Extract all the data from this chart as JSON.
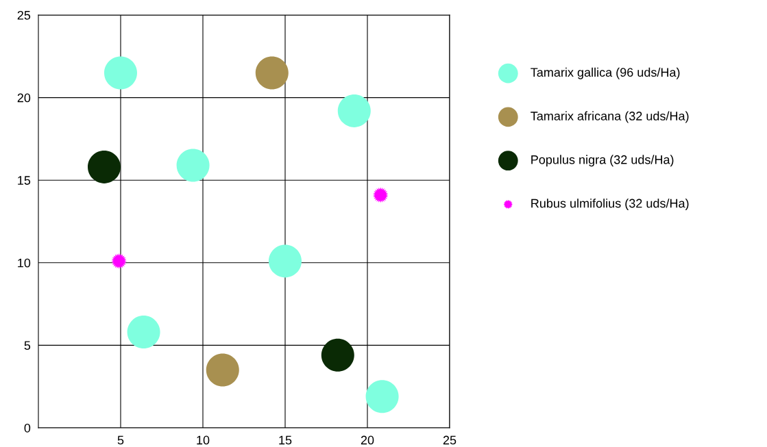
{
  "chart_data": {
    "type": "bubble",
    "xlim": [
      0,
      25
    ],
    "ylim": [
      0,
      25
    ],
    "xticks": [
      5,
      10,
      15,
      20,
      25
    ],
    "yticks": [
      0,
      5,
      10,
      15,
      20,
      25
    ],
    "grid": true,
    "legend": "right",
    "series": [
      {
        "name": "Tamarix gallica (96 uds/Ha)",
        "color": "#7fffdf",
        "marker": "circle",
        "x": [
          5,
          19.2,
          9.4,
          15,
          6.4,
          20.9
        ],
        "values": [
          21.5,
          19.2,
          15.9,
          10.1,
          5.8,
          1.9
        ],
        "sizes": [
          1,
          1,
          1,
          1,
          1,
          1
        ]
      },
      {
        "name": "Tamarix africana (32 uds/Ha)",
        "color": "#a89050",
        "marker": "circle",
        "x": [
          14.2,
          11.2
        ],
        "values": [
          21.5,
          3.5
        ],
        "sizes": [
          1,
          1
        ]
      },
      {
        "name": "Populus nigra (32 uds/Ha)",
        "color": "#0a2a05",
        "marker": "circle",
        "x": [
          4.0,
          18.2
        ],
        "values": [
          15.8,
          4.4
        ],
        "sizes": [
          1,
          1
        ]
      },
      {
        "name": "Rubus ulmifolius (32 uds/Ha)",
        "color": "#ff00ff",
        "marker": "star",
        "x": [
          4.9,
          20.8
        ],
        "values": [
          10.1,
          14.1
        ],
        "sizes": [
          0.16,
          0.16
        ]
      }
    ]
  }
}
